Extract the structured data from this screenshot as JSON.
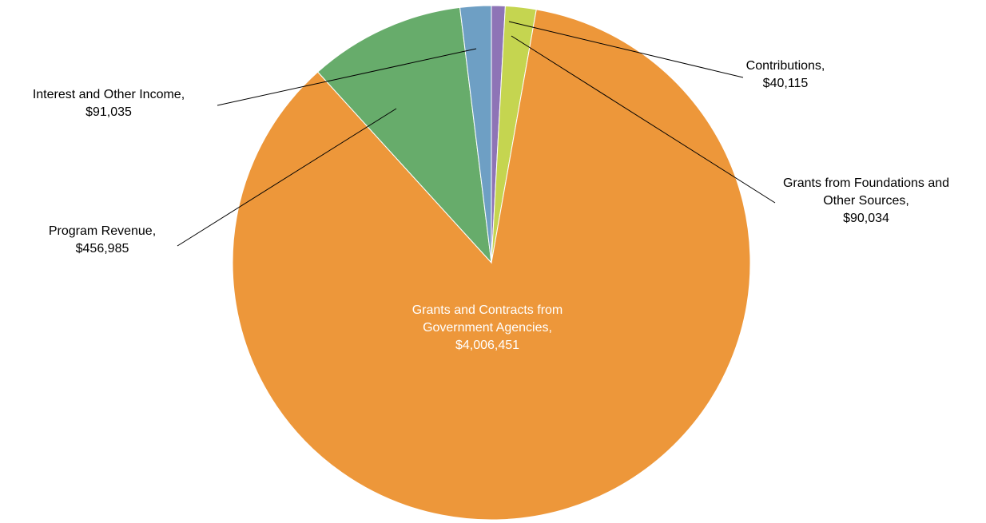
{
  "chart_data": {
    "type": "pie",
    "title": "",
    "slices": [
      {
        "name": "Contributions",
        "value": 40115,
        "display": "$40,115",
        "color": "#8e74b6"
      },
      {
        "name": "Grants from Foundations and Other Sources",
        "value": 90034,
        "display": "$90,034",
        "color": "#c5d550"
      },
      {
        "name": "Grants and Contracts from Government Agencies",
        "value": 4006451,
        "display": "$4,006,451",
        "color": "#ed973a"
      },
      {
        "name": "Program Revenue",
        "value": 456985,
        "display": "$456,985",
        "color": "#67ac6b"
      },
      {
        "name": "Interest and Other Income",
        "value": 91035,
        "display": "$91,035",
        "color": "#6e9fc4"
      }
    ],
    "labels": [
      {
        "lines": [
          "Contributions,",
          "$40,115"
        ]
      },
      {
        "lines": [
          "Grants from Foundations and",
          "Other Sources,",
          "$90,034"
        ]
      },
      {
        "lines": [
          "Grants and Contracts from",
          "Government Agencies,",
          "$4,006,451"
        ]
      },
      {
        "lines": [
          "Program Revenue,",
          "$456,985"
        ]
      },
      {
        "lines": [
          "Interest and Other Income,",
          "$91,035"
        ]
      }
    ],
    "legend": "none"
  }
}
